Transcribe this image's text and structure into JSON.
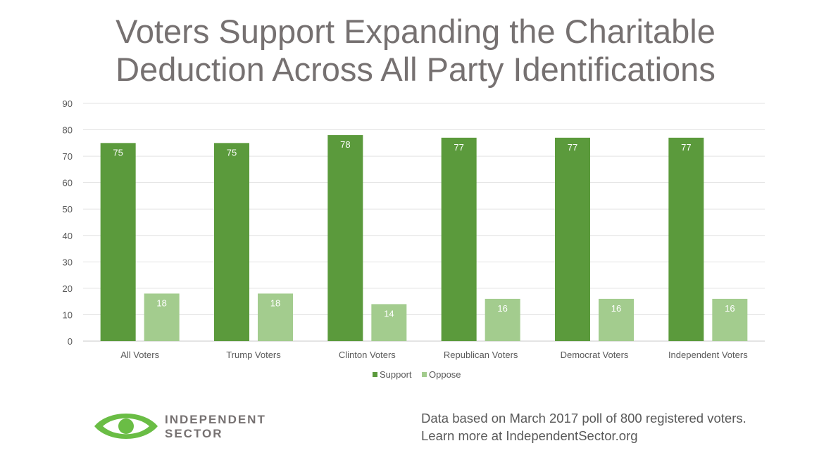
{
  "chart_data": {
    "type": "bar",
    "title_lines": [
      "Voters Support Expanding the Charitable",
      "Deduction Across All Party Identifications"
    ],
    "categories": [
      "All Voters",
      "Trump Voters",
      "Clinton Voters",
      "Republican Voters",
      "Democrat Voters",
      "Independent Voters"
    ],
    "series": [
      {
        "name": "Support",
        "values": [
          75,
          75,
          78,
          77,
          77,
          77
        ]
      },
      {
        "name": "Oppose",
        "values": [
          18,
          18,
          14,
          16,
          16,
          16
        ]
      }
    ],
    "ylim": [
      0,
      90
    ],
    "yticks": [
      0,
      10,
      20,
      30,
      40,
      50,
      60,
      70,
      80,
      90
    ],
    "grid": true,
    "legend": "bottom",
    "colors": {
      "Support": "#5b9a3c",
      "Oppose": "#a3cc8e"
    }
  },
  "logo": {
    "line1": "INDEPENDENT",
    "line2": "SECTOR",
    "icon": "eye-logo-icon",
    "color": "#6abd45"
  },
  "footnote": {
    "line1": "Data based on March 2017 poll of 800 registered voters.",
    "line2": "Learn more at IndependentSector.org"
  }
}
